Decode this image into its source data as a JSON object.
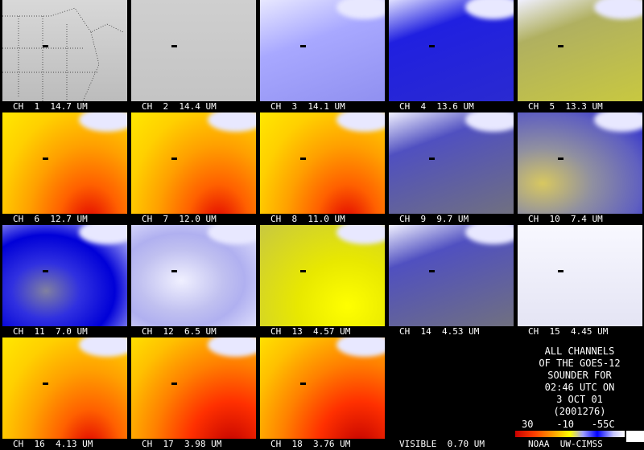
{
  "panels": [
    {
      "label": "CH  1  14.7 UM",
      "style": "map"
    },
    {
      "label": "CH  2  14.4 UM",
      "style": "gray"
    },
    {
      "label": "CH  3  14.1 UM",
      "style": "lavender"
    },
    {
      "label": "CH  4  13.6 UM",
      "style": "blue"
    },
    {
      "label": "CH  5  13.3 UM",
      "style": "olive"
    },
    {
      "label": "CH  6  12.7 UM",
      "style": "warm"
    },
    {
      "label": "CH  7  12.0 UM",
      "style": "warm"
    },
    {
      "label": "CH  8  11.0 UM",
      "style": "warm"
    },
    {
      "label": "CH  9  9.7 UM",
      "style": "slate"
    },
    {
      "label": "CH  10  7.4 UM",
      "style": "olive2"
    },
    {
      "label": "CH  11  7.0 UM",
      "style": "deepblue"
    },
    {
      "label": "CH  12  6.5 UM",
      "style": "pale"
    },
    {
      "label": "CH  13  4.57 UM",
      "style": "yellow"
    },
    {
      "label": "CH  14  4.53 UM",
      "style": "slate"
    },
    {
      "label": "CH  15  4.45 UM",
      "style": "white"
    },
    {
      "label": "CH  16  4.13 UM",
      "style": "warm"
    },
    {
      "label": "CH  17  3.98 UM",
      "style": "hot"
    },
    {
      "label": "CH  18  3.76 UM",
      "style": "hot"
    },
    {
      "label": "VISIBLE  0.70 UM",
      "style": "black"
    }
  ],
  "caption": {
    "lines": [
      "ALL CHANNELS",
      "OF THE GOES-12",
      "SOUNDER FOR",
      "02:46 UTC ON",
      "3 OCT 01",
      "(2001276)"
    ]
  },
  "scale_labels": "30    -10   -55C",
  "credit": "NOAA  UW-CIMSS",
  "colors": {
    "warm_base": "#ffb000",
    "hot_edge": "#e00000",
    "cloud": "#e8e8ff",
    "blue": "#1010d0"
  }
}
